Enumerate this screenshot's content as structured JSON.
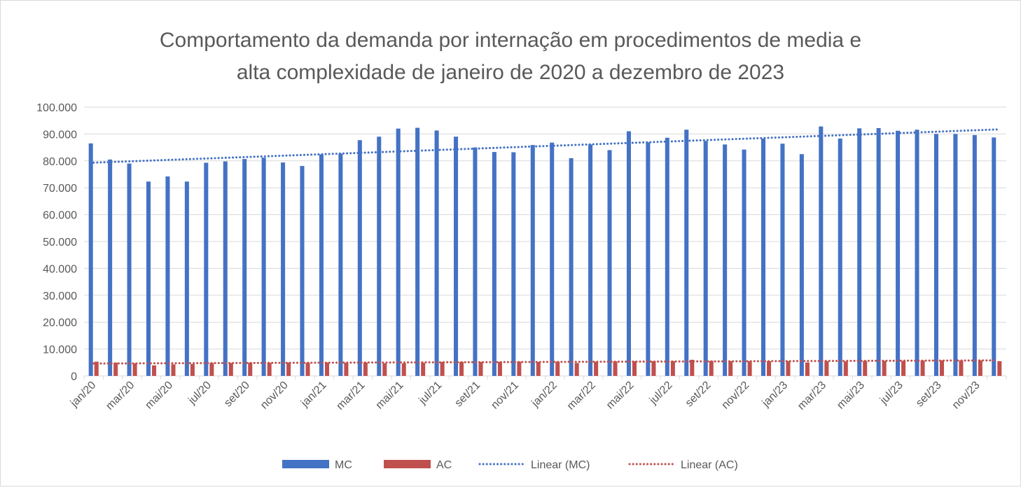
{
  "chart_data": {
    "type": "bar",
    "title_lines": [
      "Comportamento da demanda por internação em procedimentos de media e",
      "alta complexidade de janeiro de 2020 a dezembro de 2023"
    ],
    "categories": [
      "jan/20",
      null,
      "mar/20",
      null,
      "mai/20",
      null,
      "jul/20",
      null,
      "set/20",
      null,
      "nov/20",
      null,
      "jan/21",
      null,
      "mar/21",
      null,
      "mai/21",
      null,
      "jul/21",
      null,
      "set/21",
      null,
      "nov/21",
      null,
      "jan/22",
      null,
      "mar/22",
      null,
      "mai/22",
      null,
      "jul/22",
      null,
      "set/22",
      null,
      "nov/22",
      null,
      "jan/23",
      null,
      "mar/23",
      null,
      "mai/23",
      null,
      "jul/23",
      null,
      "set/23",
      null,
      "nov/23",
      null
    ],
    "series": [
      {
        "name": "MC",
        "color": "#4472c4",
        "values": [
          86500,
          80500,
          79000,
          72300,
          74200,
          72300,
          79300,
          79800,
          80700,
          81200,
          79400,
          78100,
          82400,
          82700,
          87700,
          89000,
          92000,
          92300,
          91300,
          89000,
          85000,
          83300,
          83200,
          85900,
          86800,
          81000,
          86100,
          84000,
          91000,
          86900,
          88600,
          91600,
          87400,
          86100,
          84200,
          88300,
          86400,
          82500,
          92800,
          88300,
          92100,
          92200,
          91200,
          91600,
          90000,
          90000,
          89600,
          88700
        ]
      },
      {
        "name": "AC",
        "color": "#c0504d",
        "values": [
          5300,
          4900,
          4700,
          3900,
          4300,
          4400,
          4800,
          4800,
          4900,
          4900,
          5000,
          4900,
          5000,
          4900,
          5000,
          4700,
          4700,
          4900,
          5200,
          5200,
          5200,
          5200,
          5300,
          5200,
          5300,
          4800,
          5300,
          5400,
          5500,
          5500,
          5500,
          6000,
          5600,
          5500,
          5500,
          5500,
          5500,
          5000,
          5500,
          5400,
          5600,
          5600,
          5600,
          5700,
          5800,
          5700,
          5800,
          5500
        ]
      }
    ],
    "trendlines": [
      {
        "name": "Linear (MC)",
        "series": "MC",
        "color": "#4472c4"
      },
      {
        "name": "Linear (AC)",
        "series": "AC",
        "color": "#c0504d"
      }
    ],
    "ylim": [
      0,
      100000
    ],
    "yticks": [
      0,
      {
        "value": 10000,
        "label": "10.000"
      },
      {
        "value": 20000,
        "label": "20.000"
      },
      {
        "value": 30000,
        "label": "30.000"
      },
      {
        "value": 40000,
        "label": "40.000"
      },
      {
        "value": 50000,
        "label": "50.000"
      },
      {
        "value": 60000,
        "label": "60.000"
      },
      {
        "value": 70000,
        "label": "70.000"
      },
      {
        "value": 80000,
        "label": "80.000"
      },
      {
        "value": 90000,
        "label": "90.000"
      },
      {
        "value": 100000,
        "label": "100.000"
      }
    ],
    "grid": true,
    "legend": "bottom"
  }
}
